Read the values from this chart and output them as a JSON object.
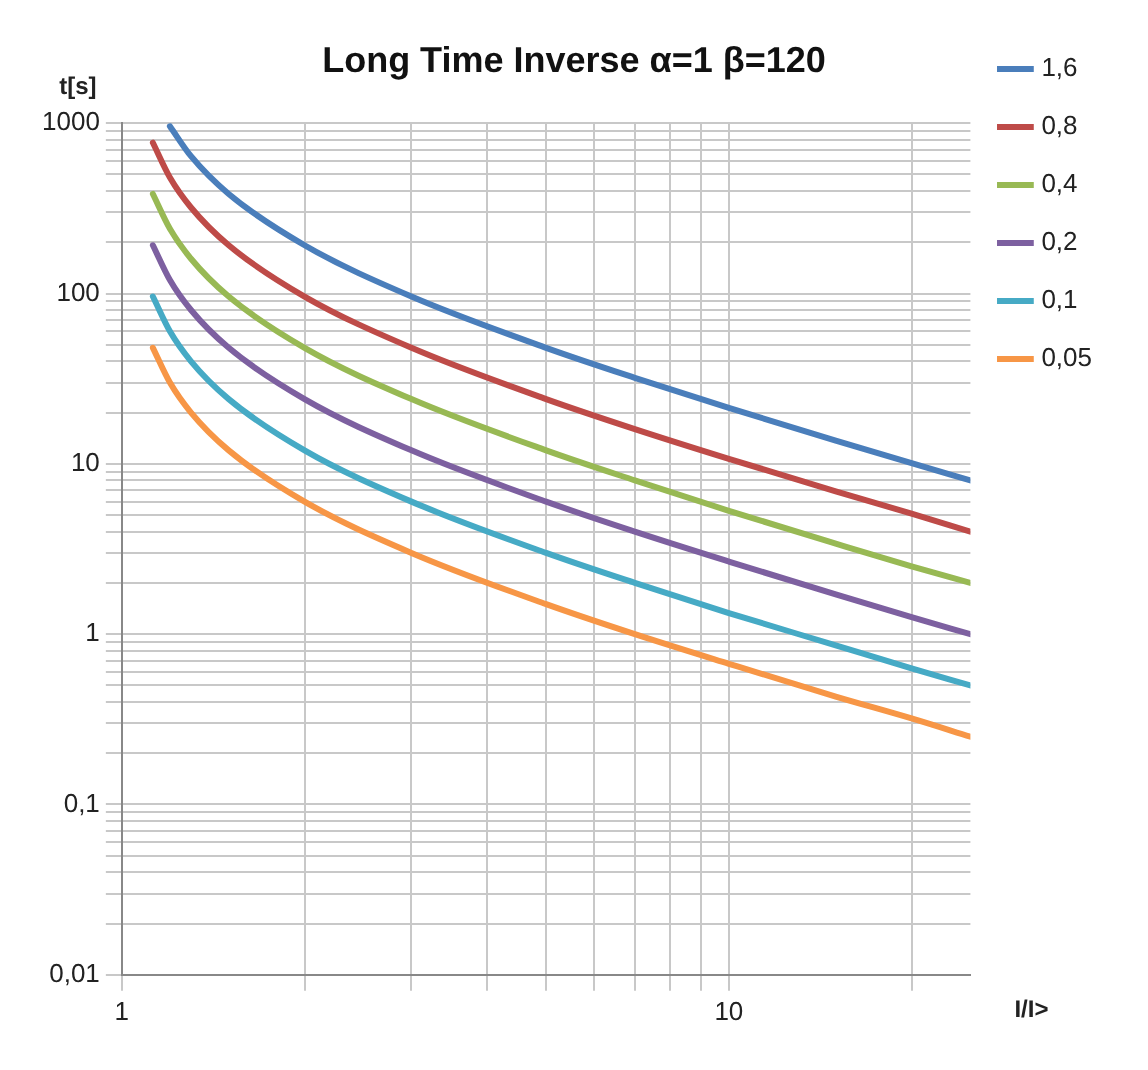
{
  "chart_data": {
    "type": "line",
    "title": "Long Time Inverse α=1 β=120",
    "xlabel": "I/I>",
    "ylabel": "t[s]",
    "x": [
      1.125,
      1.2,
      1.3,
      1.5,
      2,
      3,
      5,
      7,
      10,
      15,
      20,
      25
    ],
    "series": [
      {
        "name": "1,6",
        "color": "#4a7ebb",
        "values": [
          null,
          960,
          640,
          384,
          192,
          96,
          48,
          32,
          21.3,
          13.7,
          10.1,
          8
        ]
      },
      {
        "name": "0,8",
        "color": "#be4b48",
        "values": [
          768,
          480,
          320,
          192,
          96,
          48,
          24,
          16,
          10.7,
          6.9,
          5.1,
          4
        ]
      },
      {
        "name": "0,4",
        "color": "#98b954",
        "values": [
          384,
          240,
          160,
          96,
          48,
          24,
          12,
          8,
          5.3,
          3.4,
          2.5,
          2
        ]
      },
      {
        "name": "0,2",
        "color": "#7d60a0",
        "values": [
          192,
          120,
          80,
          48,
          24,
          12,
          6,
          4,
          2.67,
          1.71,
          1.26,
          1
        ]
      },
      {
        "name": "0,1",
        "color": "#46aac5",
        "values": [
          96,
          60,
          40,
          24,
          12,
          6,
          3,
          2,
          1.33,
          0.86,
          0.63,
          0.5
        ]
      },
      {
        "name": "0,05",
        "color": "#f79646",
        "values": [
          48,
          30,
          20,
          12,
          6,
          3,
          1.5,
          1,
          0.67,
          0.43,
          0.32,
          0.25
        ]
      }
    ],
    "log": "xy",
    "xlim": [
      1,
      25
    ],
    "ylim": [
      0.01,
      1000
    ],
    "xticks": [
      1,
      {
        "value": 2,
        "label": null
      },
      {
        "value": 3,
        "label": null
      },
      {
        "value": 4,
        "label": null
      },
      {
        "value": 5,
        "label": null
      },
      {
        "value": 6,
        "label": null
      },
      {
        "value": 7,
        "label": null
      },
      {
        "value": 8,
        "label": null
      },
      {
        "value": 9,
        "label": null
      },
      10,
      {
        "value": 20,
        "label": null
      }
    ],
    "yticks": [
      {
        "value": 0.01,
        "label": "0,01"
      },
      {
        "value": 0.02,
        "label": null
      },
      {
        "value": 0.03,
        "label": null
      },
      {
        "value": 0.04,
        "label": null
      },
      {
        "value": 0.05,
        "label": null
      },
      {
        "value": 0.06,
        "label": null
      },
      {
        "value": 0.07,
        "label": null
      },
      {
        "value": 0.08,
        "label": null
      },
      {
        "value": 0.09,
        "label": null
      },
      {
        "value": 0.1,
        "label": "0,1"
      },
      {
        "value": 0.2,
        "label": null
      },
      {
        "value": 0.3,
        "label": null
      },
      {
        "value": 0.4,
        "label": null
      },
      {
        "value": 0.5,
        "label": null
      },
      {
        "value": 0.6,
        "label": null
      },
      {
        "value": 0.7,
        "label": null
      },
      {
        "value": 0.8,
        "label": null
      },
      {
        "value": 0.9,
        "label": null
      },
      1,
      {
        "value": 2,
        "label": null
      },
      {
        "value": 3,
        "label": null
      },
      {
        "value": 4,
        "label": null
      },
      {
        "value": 5,
        "label": null
      },
      {
        "value": 6,
        "label": null
      },
      {
        "value": 7,
        "label": null
      },
      {
        "value": 8,
        "label": null
      },
      {
        "value": 9,
        "label": null
      },
      10,
      {
        "value": 20,
        "label": null
      },
      {
        "value": 30,
        "label": null
      },
      {
        "value": 40,
        "label": null
      },
      {
        "value": 50,
        "label": null
      },
      {
        "value": 60,
        "label": null
      },
      {
        "value": 70,
        "label": null
      },
      {
        "value": 80,
        "label": null
      },
      {
        "value": 90,
        "label": null
      },
      100,
      {
        "value": 200,
        "label": null
      },
      {
        "value": 300,
        "label": null
      },
      {
        "value": 400,
        "label": null
      },
      {
        "value": 500,
        "label": null
      },
      {
        "value": 600,
        "label": null
      },
      {
        "value": 700,
        "label": null
      },
      {
        "value": 800,
        "label": null
      },
      {
        "value": 900,
        "label": null
      },
      1000
    ],
    "grid": true,
    "legend": "right",
    "marker": "none",
    "line_style": "solid"
  }
}
